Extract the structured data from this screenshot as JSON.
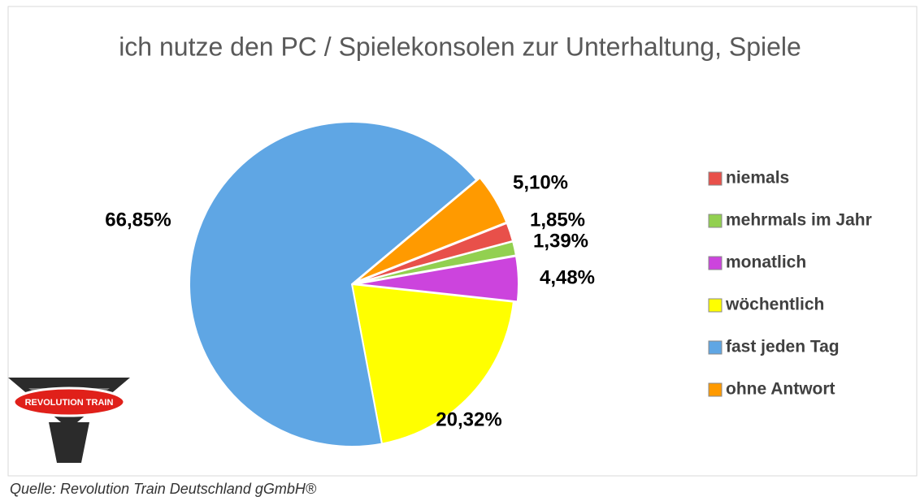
{
  "chart_data": {
    "type": "pie",
    "title": "ich nutze den PC / Spielekonsolen zur Unterhaltung, Spiele",
    "categories": [
      "niemals",
      "mehrmals im Jahr",
      "monatlich",
      "wöchentlich",
      "fast jeden Tag",
      "ohne Antwort"
    ],
    "values": [
      1.85,
      1.39,
      4.48,
      20.32,
      66.85,
      5.1
    ],
    "value_labels": [
      "1,85%",
      "1,39%",
      "4,48%",
      "20,32%",
      "66,85%",
      "5,10%"
    ],
    "colors": [
      "#e8504a",
      "#92d050",
      "#cc44dd",
      "#ffff00",
      "#5fa6e4",
      "#ff9a00"
    ],
    "legend": "right"
  },
  "source": "Quelle: Revolution Train Deutschland gGmbH®",
  "logo_text": "REVOLUTION TRAIN"
}
